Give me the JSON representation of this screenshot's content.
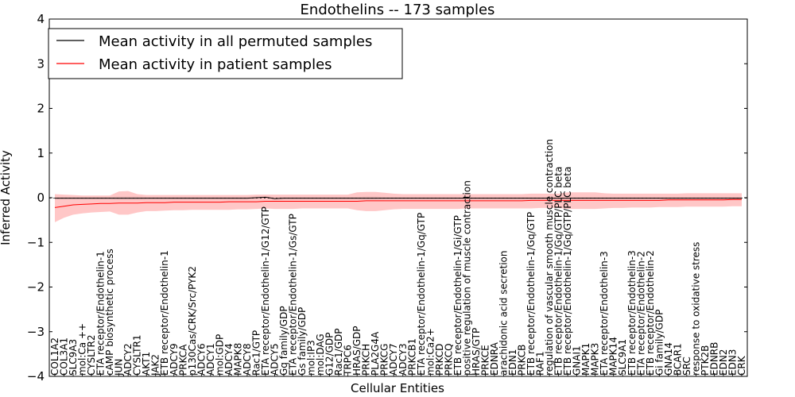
{
  "chart_data": {
    "type": "line",
    "title": "Endothelins -- 173 samples",
    "xlabel": "Cellular Entities",
    "ylabel": "Inferred Activity",
    "ylim": [
      -4,
      4
    ],
    "yticks": [
      4,
      3,
      2,
      1,
      0,
      -1,
      -2,
      -3,
      -4
    ],
    "ytick_labels": [
      "4",
      "3",
      "2",
      "1",
      "0",
      "−1",
      "−2",
      "−3",
      "−4"
    ],
    "legend_position": "top-left",
    "categories": [
      "COL1A2",
      "COL3A1",
      "SLC9A3",
      "mol:Ca ++",
      "CYSLTR2",
      "ETA receptor/Endothelin-1",
      "cAMP biosynthetic process",
      "JUN",
      "ADCY2",
      "CYSLTR1",
      "AKT1",
      "JAK2",
      "ETB receptor/Endothelin-1",
      "ADCY9",
      "PRKCA",
      "p130Cas/CRK/Src/PYK2",
      "ADCY6",
      "ADCY1",
      "mol:GDP",
      "ADCY4",
      "MAPK8",
      "ADCY8",
      "Rac1/GTP",
      "ETA receptor/Endothelin-1/G12/GTP",
      "ADCY5",
      "Gq family/GDP",
      "ETA receptor/Endothelin-1/Gs/GTP",
      "Gs family/GDP",
      "mol:IP3",
      "mol:DAG",
      "G12/GDP",
      "Rac1/GDP",
      "TRPC6",
      "HRAS/GDP",
      "PRKCH",
      "PLA2G4A",
      "PRKCG",
      "ADCY7",
      "ADCY3",
      "PRKCB1",
      "ETA receptor/Endothelin-1/Gq/GTP",
      "mol:Ca2+",
      "PRKCD",
      "PRKCQ",
      "ETB receptor/Endothelin-1/Gi/GTP",
      "positive regulation of muscle contraction",
      "HRAS/GTP",
      "PRKCE",
      "EDNRA",
      "arachidonic acid secretion",
      "EDN1",
      "PRKCB",
      "ETB receptor/Endothelin-1/Gq/GTP",
      "RAF1",
      "regulation of vascular smooth muscle contraction",
      "ETB receptor/Endothelin-1/Gq/GTP/PLC beta",
      "ETB receptor/Endothelin-1/Gq/GTP/PLC beta",
      "GNAI1",
      "MAPK1",
      "MAPK3",
      "ETA receptor/Endothelin-3",
      "MAPK14",
      "SLC9A1",
      "ETB receptor/Endothelin-3",
      "ETA receptor/Endothelin-2",
      "ETB receptor/Endothelin-2",
      "Gi family/GDP",
      "GNA14",
      "BCAR1",
      "SRC",
      "response to oxidative stress",
      "PTK2B",
      "EDNRB",
      "EDN2",
      "EDN3",
      "CRK"
    ],
    "series": [
      {
        "name": "Mean activity in all permuted samples",
        "color": "#000000",
        "values": [
          -0.01,
          -0.01,
          -0.01,
          -0.01,
          -0.01,
          -0.01,
          -0.01,
          -0.01,
          -0.01,
          -0.01,
          -0.01,
          -0.01,
          -0.01,
          -0.01,
          -0.01,
          -0.01,
          -0.01,
          -0.01,
          -0.01,
          -0.01,
          -0.01,
          -0.01,
          0.0,
          0.01,
          -0.02,
          -0.01,
          -0.01,
          -0.01,
          -0.01,
          -0.01,
          -0.01,
          -0.01,
          -0.01,
          -0.01,
          -0.01,
          -0.01,
          -0.01,
          -0.01,
          -0.01,
          -0.01,
          -0.01,
          -0.01,
          -0.01,
          -0.01,
          -0.01,
          -0.01,
          -0.01,
          -0.01,
          -0.01,
          -0.01,
          -0.01,
          -0.01,
          -0.01,
          -0.01,
          -0.01,
          -0.01,
          -0.01,
          -0.01,
          -0.01,
          -0.01,
          -0.01,
          -0.01,
          -0.01,
          -0.01,
          -0.01,
          -0.01,
          -0.01,
          -0.01,
          -0.01,
          -0.01,
          -0.01,
          -0.01,
          -0.01,
          -0.01,
          -0.01,
          -0.01
        ],
        "band_low": [
          -0.04,
          -0.04,
          -0.04,
          -0.04,
          -0.04,
          -0.04,
          -0.04,
          -0.05,
          -0.05,
          -0.05,
          -0.04,
          -0.04,
          -0.04,
          -0.04,
          -0.04,
          -0.04,
          -0.04,
          -0.04,
          -0.04,
          -0.04,
          -0.04,
          -0.04,
          -0.02,
          -0.01,
          -0.05,
          -0.04,
          -0.04,
          -0.04,
          -0.04,
          -0.04,
          -0.04,
          -0.04,
          -0.04,
          -0.04,
          -0.05,
          -0.05,
          -0.04,
          -0.04,
          -0.04,
          -0.04,
          -0.04,
          -0.04,
          -0.04,
          -0.04,
          -0.04,
          -0.04,
          -0.04,
          -0.04,
          -0.04,
          -0.04,
          -0.04,
          -0.04,
          -0.04,
          -0.04,
          -0.04,
          -0.04,
          -0.04,
          -0.04,
          -0.04,
          -0.04,
          -0.04,
          -0.04,
          -0.04,
          -0.04,
          -0.04,
          -0.04,
          -0.04,
          -0.04,
          -0.04,
          -0.04,
          -0.04,
          -0.04,
          -0.04,
          -0.04,
          -0.04,
          -0.04
        ],
        "band_high": [
          0.02,
          0.02,
          0.02,
          0.02,
          0.02,
          0.02,
          0.02,
          0.03,
          0.03,
          0.03,
          0.02,
          0.02,
          0.02,
          0.02,
          0.02,
          0.02,
          0.02,
          0.02,
          0.02,
          0.02,
          0.02,
          0.02,
          0.03,
          0.04,
          0.01,
          0.02,
          0.02,
          0.02,
          0.02,
          0.02,
          0.02,
          0.02,
          0.02,
          0.02,
          0.03,
          0.03,
          0.02,
          0.02,
          0.02,
          0.02,
          0.02,
          0.02,
          0.02,
          0.02,
          0.02,
          0.02,
          0.02,
          0.02,
          0.02,
          0.02,
          0.02,
          0.02,
          0.02,
          0.02,
          0.02,
          0.02,
          0.02,
          0.02,
          0.02,
          0.02,
          0.02,
          0.02,
          0.02,
          0.02,
          0.02,
          0.02,
          0.02,
          0.02,
          0.02,
          0.02,
          0.02,
          0.02,
          0.02,
          0.02,
          0.02,
          0.02
        ]
      },
      {
        "name": "Mean activity in patient samples",
        "color": "#ff0000",
        "fill_color": "#ff9999",
        "values": [
          -0.22,
          -0.19,
          -0.16,
          -0.15,
          -0.14,
          -0.13,
          -0.13,
          -0.12,
          -0.12,
          -0.12,
          -0.11,
          -0.11,
          -0.11,
          -0.1,
          -0.1,
          -0.1,
          -0.1,
          -0.1,
          -0.1,
          -0.09,
          -0.09,
          -0.09,
          -0.09,
          -0.08,
          -0.08,
          -0.08,
          -0.08,
          -0.08,
          -0.08,
          -0.08,
          -0.08,
          -0.08,
          -0.08,
          -0.08,
          -0.07,
          -0.07,
          -0.07,
          -0.07,
          -0.07,
          -0.07,
          -0.07,
          -0.07,
          -0.07,
          -0.07,
          -0.07,
          -0.07,
          -0.07,
          -0.07,
          -0.07,
          -0.07,
          -0.07,
          -0.07,
          -0.06,
          -0.06,
          -0.06,
          -0.06,
          -0.06,
          -0.06,
          -0.06,
          -0.06,
          -0.06,
          -0.06,
          -0.06,
          -0.06,
          -0.06,
          -0.06,
          -0.06,
          -0.05,
          -0.05,
          -0.05,
          -0.05,
          -0.05,
          -0.05,
          -0.05,
          -0.04,
          -0.04
        ],
        "band_low": [
          -0.55,
          -0.45,
          -0.38,
          -0.35,
          -0.33,
          -0.32,
          -0.31,
          -0.38,
          -0.38,
          -0.33,
          -0.3,
          -0.3,
          -0.29,
          -0.28,
          -0.28,
          -0.27,
          -0.27,
          -0.27,
          -0.27,
          -0.27,
          -0.26,
          -0.26,
          -0.25,
          -0.24,
          -0.25,
          -0.25,
          -0.25,
          -0.24,
          -0.24,
          -0.24,
          -0.24,
          -0.24,
          -0.24,
          -0.28,
          -0.3,
          -0.3,
          -0.28,
          -0.26,
          -0.25,
          -0.25,
          -0.25,
          -0.25,
          -0.25,
          -0.25,
          -0.25,
          -0.24,
          -0.24,
          -0.24,
          -0.24,
          -0.24,
          -0.24,
          -0.24,
          -0.24,
          -0.23,
          -0.23,
          -0.23,
          -0.25,
          -0.25,
          -0.25,
          -0.25,
          -0.24,
          -0.23,
          -0.23,
          -0.22,
          -0.22,
          -0.22,
          -0.21,
          -0.21,
          -0.21,
          -0.2,
          -0.2,
          -0.2,
          -0.2,
          -0.2,
          -0.19,
          -0.19
        ],
        "band_high": [
          0.08,
          0.07,
          0.06,
          0.05,
          0.05,
          0.05,
          0.05,
          0.14,
          0.15,
          0.08,
          0.06,
          0.06,
          0.06,
          0.06,
          0.06,
          0.06,
          0.06,
          0.06,
          0.06,
          0.06,
          0.06,
          0.06,
          0.07,
          0.07,
          0.07,
          0.07,
          0.07,
          0.07,
          0.07,
          0.07,
          0.07,
          0.07,
          0.07,
          0.12,
          0.13,
          0.13,
          0.11,
          0.09,
          0.08,
          0.08,
          0.08,
          0.08,
          0.08,
          0.08,
          0.08,
          0.08,
          0.08,
          0.08,
          0.08,
          0.08,
          0.08,
          0.08,
          0.09,
          0.09,
          0.09,
          0.09,
          0.12,
          0.12,
          0.12,
          0.12,
          0.1,
          0.09,
          0.09,
          0.09,
          0.09,
          0.09,
          0.09,
          0.09,
          0.09,
          0.1,
          0.1,
          0.1,
          0.1,
          0.1,
          0.1,
          0.1
        ]
      }
    ]
  }
}
